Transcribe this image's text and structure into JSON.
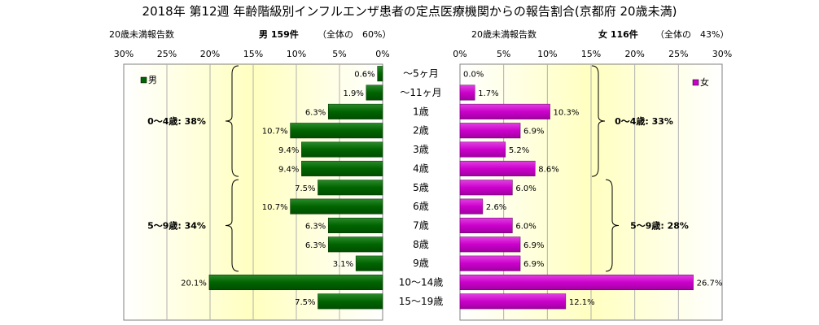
{
  "title": "2018年 第12週 年齢階級別インフルエンザ患者の定点医療機関からの報告割合(京都府 20歳未満)",
  "left_header": {
    "caption": "20歳未満報告数",
    "sex_count": "男 159件",
    "share": "（全体の　60%）"
  },
  "right_header": {
    "caption": "20歳未満報告数",
    "sex_count": "女 116件",
    "share": "（全体の　43%）"
  },
  "chart_data": [
    {
      "type": "bar",
      "orientation": "horizontal",
      "direction": "right-to-left",
      "categories": [
        "～5ヶ月",
        "～11ヶ月",
        "1歳",
        "2歳",
        "3歳",
        "4歳",
        "5歳",
        "6歳",
        "7歳",
        "8歳",
        "9歳",
        "10～14歳",
        "15～19歳"
      ],
      "series": [
        {
          "name": "男",
          "values": [
            0.6,
            1.9,
            6.3,
            10.7,
            9.4,
            9.4,
            7.5,
            10.7,
            6.3,
            6.3,
            3.1,
            20.1,
            7.5
          ],
          "labels": [
            "0.6%",
            "1.9%",
            "6.3%",
            "10.7%",
            "9.4%",
            "9.4%",
            "7.5%",
            "10.7%",
            "6.3%",
            "6.3%",
            "3.1%",
            "20.1%",
            "7.5%"
          ],
          "color": "#006400"
        }
      ],
      "xlim": [
        0,
        30
      ],
      "xticks": [
        "30%",
        "25%",
        "20%",
        "15%",
        "10%",
        "5%",
        "0%"
      ],
      "legend": "top-left",
      "grid": true,
      "groups": [
        {
          "label": "0～4歳: 38%",
          "from": 0,
          "to": 5
        },
        {
          "label": "5～9歳: 34%",
          "from": 6,
          "to": 10
        }
      ]
    },
    {
      "type": "bar",
      "orientation": "horizontal",
      "direction": "left-to-right",
      "categories": [
        "～5ヶ月",
        "～11ヶ月",
        "1歳",
        "2歳",
        "3歳",
        "4歳",
        "5歳",
        "6歳",
        "7歳",
        "8歳",
        "9歳",
        "10～14歳",
        "15～19歳"
      ],
      "series": [
        {
          "name": "女",
          "values": [
            0.0,
            1.7,
            10.3,
            6.9,
            5.2,
            8.6,
            6.0,
            2.6,
            6.0,
            6.9,
            6.9,
            26.7,
            12.1
          ],
          "labels": [
            "0.0%",
            "1.7%",
            "10.3%",
            "6.9%",
            "5.2%",
            "8.6%",
            "6.0%",
            "2.6%",
            "6.0%",
            "6.9%",
            "6.9%",
            "26.7%",
            "12.1%"
          ],
          "color": "#cc00cc"
        }
      ],
      "xlim": [
        0,
        30
      ],
      "xticks": [
        "0%",
        "5%",
        "10%",
        "15%",
        "20%",
        "25%",
        "30%"
      ],
      "legend": "top-right",
      "grid": true,
      "groups": [
        {
          "label": "0～4歳: 33%",
          "from": 0,
          "to": 5
        },
        {
          "label": "5～9歳: 28%",
          "from": 6,
          "to": 10
        }
      ]
    }
  ]
}
